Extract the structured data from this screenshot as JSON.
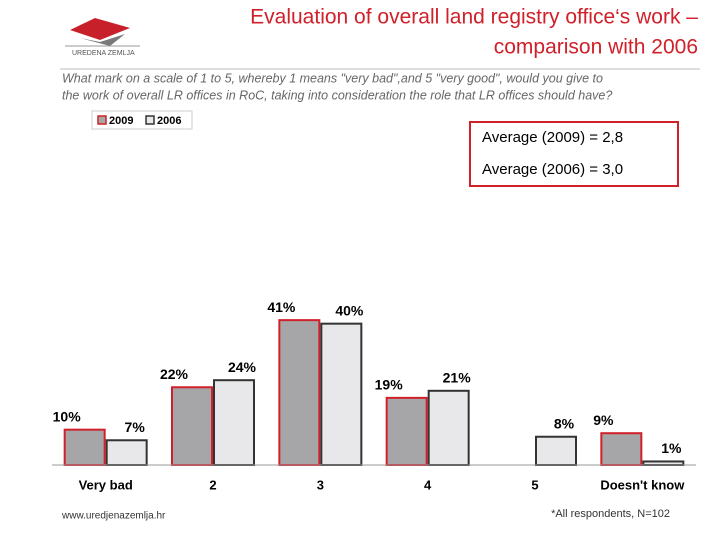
{
  "chart_data": {
    "type": "bar",
    "title": [
      "Evaluation of overall land registry office‘s work –",
      "comparison with 2006"
    ],
    "subtitle": [
      "What mark on a scale of  1 to 5, whereby  1 means \"very bad\",and  5 \"very good\", would you give to",
      "the work of overall LR offices in RoC, taking into consideration the role that LR offices should have?"
    ],
    "logo_text": "UREDENA ZEMLJA",
    "annotations": [
      "Average (2009) = 2,8",
      "Average (2006) = 3,0"
    ],
    "categories": [
      "Very bad",
      "2",
      "3",
      "4",
      "5",
      "Doesn't know"
    ],
    "series": [
      {
        "name": "2009",
        "color": "#a6a6a8",
        "edgecolor": "#d0202a",
        "values": [
          10,
          22,
          41,
          19,
          null,
          9
        ],
        "value_labels": [
          "10%",
          "22%",
          "41%",
          "19%",
          null,
          "9%"
        ]
      },
      {
        "name": "2006",
        "color": "#e8e8ea",
        "edgecolor": "#333333",
        "values": [
          7,
          24,
          40,
          21,
          8,
          1
        ],
        "value_labels": [
          "7%",
          "24%",
          "40%",
          "21%",
          "8%",
          "1%"
        ]
      }
    ],
    "ylim": [
      0,
      45
    ],
    "source": "www.uredjenazemlja.hr",
    "note": "*All respondents, N=102"
  }
}
